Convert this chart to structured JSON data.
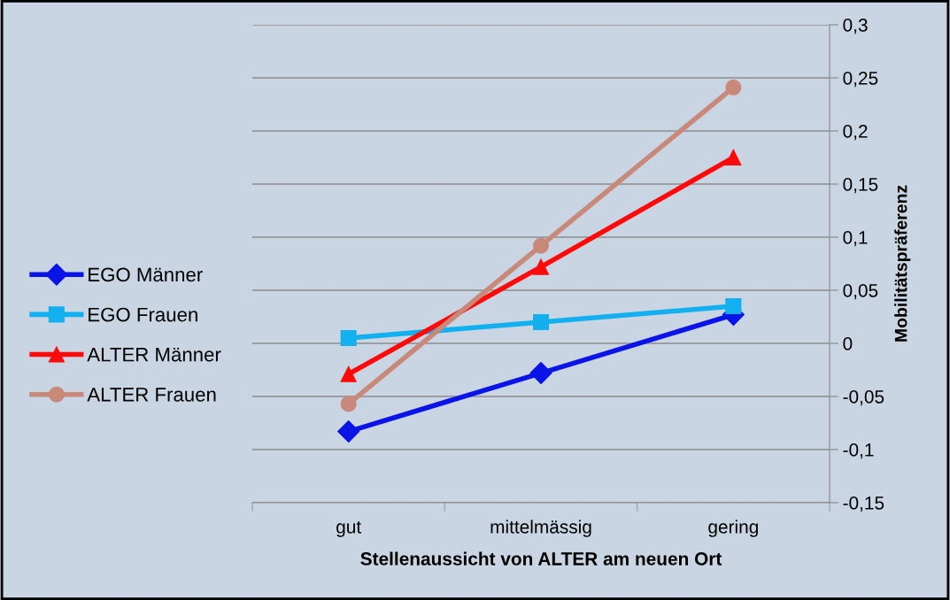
{
  "chart_data": {
    "type": "line",
    "xlabel": "Stellenaussicht von ALTER am neuen Ort",
    "ylabel": "Mobilitätspräferenz",
    "categories": [
      "gut",
      "mittelmässig",
      "gering"
    ],
    "series": [
      {
        "name": "EGO Männer",
        "color": "#0a14e6",
        "marker": "diamond",
        "values": [
          -0.083,
          -0.028,
          0.027
        ]
      },
      {
        "name": "EGO Frauen",
        "color": "#12b0ee",
        "marker": "square",
        "values": [
          0.005,
          0.02,
          0.035
        ]
      },
      {
        "name": "ALTER Männer",
        "color": "#ff0a0a",
        "marker": "triangle",
        "values": [
          -0.029,
          0.072,
          0.175
        ]
      },
      {
        "name": "ALTER Frauen",
        "color": "#c8887a",
        "marker": "circle",
        "values": [
          -0.057,
          0.092,
          0.241
        ]
      }
    ],
    "ylim": [
      -0.15,
      0.3
    ],
    "yticks": [
      {
        "value": -0.15,
        "label": "-0,15"
      },
      {
        "value": -0.1,
        "label": "-0,1"
      },
      {
        "value": -0.05,
        "label": "-0,05"
      },
      {
        "value": 0,
        "label": "0"
      },
      {
        "value": 0.05,
        "label": "0,05"
      },
      {
        "value": 0.1,
        "label": "0,1"
      },
      {
        "value": 0.15,
        "label": "0,15"
      },
      {
        "value": 0.2,
        "label": "0,2"
      },
      {
        "value": 0.25,
        "label": "0,25"
      },
      {
        "value": 0.3,
        "label": "0,3"
      }
    ],
    "grid": "y",
    "legend": "left",
    "line_style": "solid"
  }
}
